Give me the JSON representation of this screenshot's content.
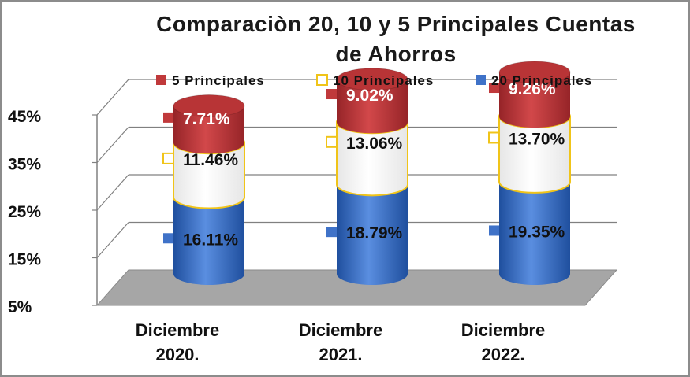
{
  "chart_data": {
    "type": "bar",
    "stacked": true,
    "style": "3d-cylinder",
    "title": "Comparaciòn  20, 10 y 5 Principales Cuentas\nde Ahorros",
    "categories": [
      [
        "Diciembre",
        "2020."
      ],
      [
        "Diciembre",
        "2021."
      ],
      [
        "Diciembre",
        "2022."
      ]
    ],
    "yticks": [
      "5%",
      "15%",
      "25%",
      "35%",
      "45%"
    ],
    "ylim": [
      5,
      45
    ],
    "legend_position": "top",
    "series": [
      {
        "name": "20 Principales",
        "values": [
          16.11,
          18.79,
          19.35
        ],
        "labels": [
          "16.11%",
          "18.79%",
          "19.35%"
        ],
        "color": "#3f72c8",
        "label_color": "#111111"
      },
      {
        "name": "10 Principales",
        "values": [
          11.46,
          13.06,
          13.7
        ],
        "labels": [
          "11.46%",
          "13.06%",
          "13.70%"
        ],
        "color": "#ffffff",
        "edge": "#f0c419",
        "label_color": "#111111"
      },
      {
        "name": "5 Principales",
        "values": [
          7.71,
          9.02,
          9.26
        ],
        "labels": [
          "7.71%",
          "9.02%",
          "9.26%"
        ],
        "color": "#c0393b",
        "label_color": "#ffffff"
      }
    ],
    "legend_order": [
      "5 Principales",
      "10 Principales",
      "20 Principales"
    ]
  }
}
